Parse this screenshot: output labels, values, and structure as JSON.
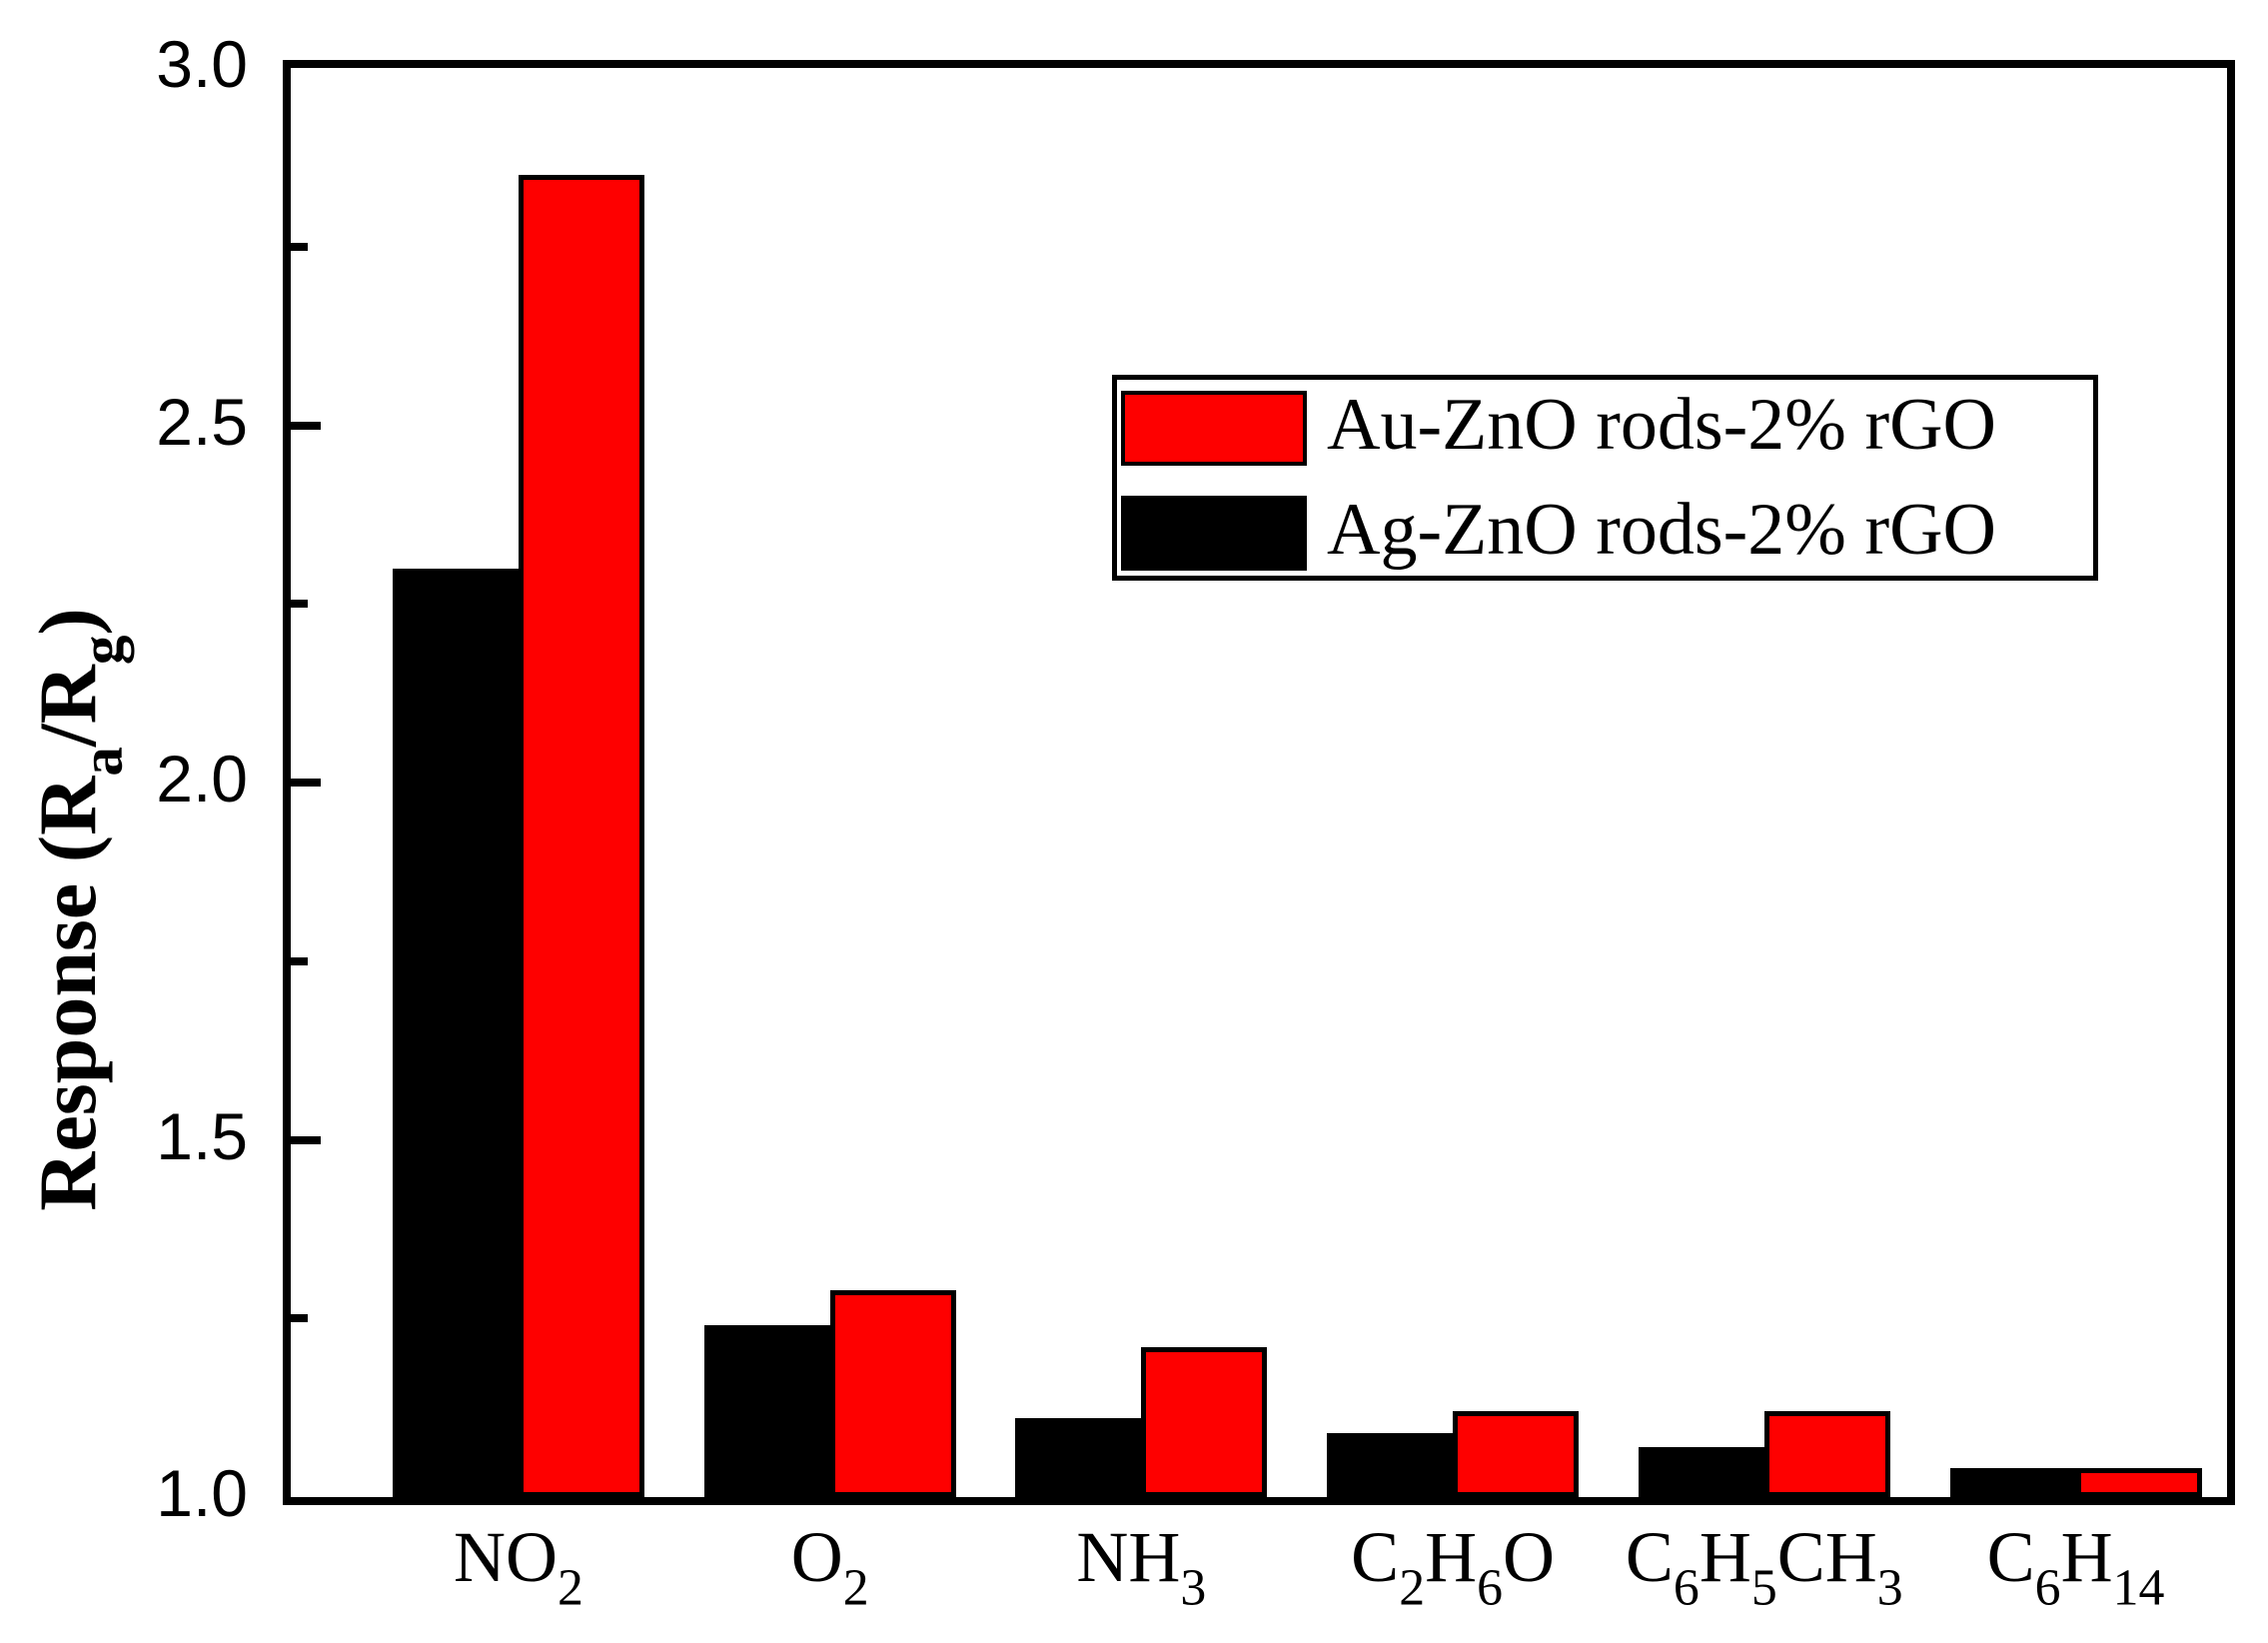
{
  "figure": {
    "y_axis": {
      "title_plain": "Response (Ra/Rg)",
      "title_segments": [
        {
          "t": "Response (R"
        },
        {
          "s": "a"
        },
        {
          "t": "/R"
        },
        {
          "s": "g"
        },
        {
          "t": ")"
        }
      ],
      "tick_labels": [
        "3.0",
        "2.5",
        "2.0",
        "1.5",
        "1.0"
      ]
    },
    "x_axis": {
      "labels": [
        {
          "plain": "NO2",
          "segments": [
            {
              "t": "NO"
            },
            {
              "s": "2"
            }
          ]
        },
        {
          "plain": "O2",
          "segments": [
            {
              "t": "O"
            },
            {
              "s": "2"
            }
          ]
        },
        {
          "plain": "NH3",
          "segments": [
            {
              "t": "NH"
            },
            {
              "s": "3"
            }
          ]
        },
        {
          "plain": "C2H6O",
          "segments": [
            {
              "t": "C"
            },
            {
              "s": "2"
            },
            {
              "t": "H"
            },
            {
              "s": "6"
            },
            {
              "t": "O"
            }
          ]
        },
        {
          "plain": "C6H5CH3",
          "segments": [
            {
              "t": "C"
            },
            {
              "s": "6"
            },
            {
              "t": "H"
            },
            {
              "s": "5"
            },
            {
              "t": "CH"
            },
            {
              "s": "3"
            }
          ]
        },
        {
          "plain": "C6H14",
          "segments": [
            {
              "t": "C"
            },
            {
              "s": "6"
            },
            {
              "t": "H"
            },
            {
              "s": "14"
            }
          ]
        }
      ]
    }
  },
  "chart_data": {
    "type": "bar",
    "title": "",
    "xlabel": "",
    "ylabel": "Response (Ra/Rg)",
    "ylim": [
      1.0,
      3.0
    ],
    "y_major_ticks": [
      3.0,
      2.5,
      2.0,
      1.5,
      1.0
    ],
    "y_minor_ticks": [
      2.75,
      2.25,
      1.75,
      1.25
    ],
    "grid": false,
    "legend_position": "upper right",
    "categories": [
      "NO2",
      "O2",
      "NH3",
      "C2H6O",
      "C6H5CH3",
      "C6H14"
    ],
    "series": [
      {
        "name": "Au-ZnO rods-2% rGO",
        "color": "#fe0000",
        "values": [
          2.85,
          1.29,
          1.21,
          1.12,
          1.12,
          1.04
        ]
      },
      {
        "name": "Ag-ZnO rods-2% rGO",
        "color": "#000000",
        "values": [
          2.3,
          1.24,
          1.11,
          1.09,
          1.07,
          1.04
        ]
      }
    ]
  }
}
